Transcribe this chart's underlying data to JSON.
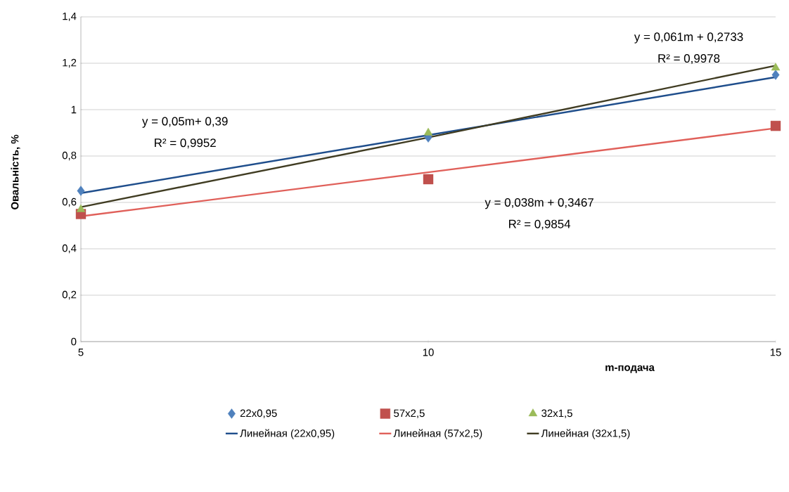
{
  "chart_data": {
    "type": "scatter",
    "xlabel": "m-подача",
    "ylabel": "Овальність, %",
    "x": [
      5,
      10,
      15
    ],
    "xlim": [
      5,
      15
    ],
    "xticks": [
      5,
      10,
      15
    ],
    "ylim": [
      0,
      1.4
    ],
    "yticks": [
      0,
      {
        "value": 0.2,
        "label": "0,2"
      },
      {
        "value": 0.4,
        "label": "0,4"
      },
      {
        "value": 0.6,
        "label": "0,6"
      },
      {
        "value": 0.8,
        "label": "0,8"
      },
      1,
      {
        "value": 1.2,
        "label": "1,2"
      },
      {
        "value": 1.4,
        "label": "1,4"
      }
    ],
    "grid": "y",
    "legend": "bottom",
    "series": [
      {
        "name": "22x0,95",
        "marker": "diamond",
        "color": "#4f81bd",
        "values": [
          0.65,
          0.88,
          1.15
        ]
      },
      {
        "name": "57x2,5",
        "marker": "square",
        "color": "#c0504d",
        "values": [
          0.55,
          0.7,
          0.93
        ]
      },
      {
        "name": "32x1,5",
        "marker": "triangle",
        "color": "#9bbb59",
        "values": [
          0.57,
          0.9,
          1.18
        ]
      },
      {
        "name": "Линейная (22x0,95)",
        "type": "line",
        "color": "#1f4e8c",
        "values": [
          0.64,
          0.89,
          1.14
        ]
      },
      {
        "name": "Линейная (57x2,5)",
        "type": "line",
        "color": "#e0605a",
        "values": [
          0.54,
          0.73,
          0.92
        ]
      },
      {
        "name": "Линейная (32x1,5)",
        "type": "line",
        "color": "#403c22",
        "values": [
          0.58,
          0.88,
          1.19
        ]
      }
    ],
    "annotations": [
      "y = 0,05m+ 0,39",
      "R² = 0,9952",
      "y = 0,038m + 0,3467",
      "R² = 0,9854",
      "y = 0,061m + 0,2733",
      "R² = 0,9978"
    ]
  }
}
